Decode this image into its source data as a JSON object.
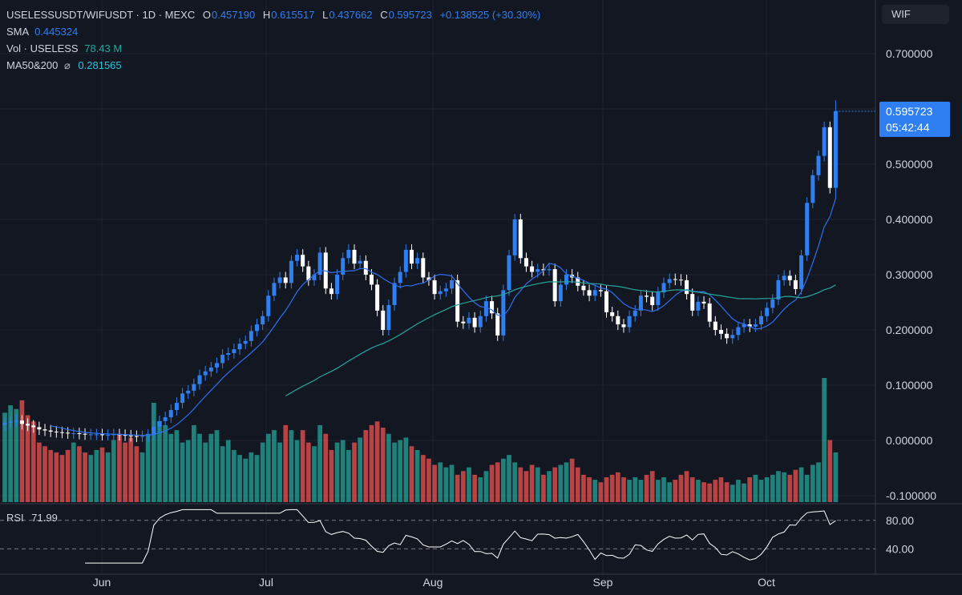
{
  "header": {
    "symbol": "USELESSUSDT/WIFUSDT · 1D · MEXC",
    "open_label": "O",
    "open": "0.457190",
    "high_label": "H",
    "high": "0.615517",
    "low_label": "L",
    "low": "0.437662",
    "close_label": "C",
    "close": "0.595723",
    "change": "+0.138525 (+30.30%)",
    "sma_label": "SMA",
    "sma_value": "0.445324",
    "vol_label": "Vol · USELESS",
    "vol_value": "78.43 M",
    "ma_label": "MA50&200",
    "ma_symbol": "⌀",
    "ma_value": "0.281565",
    "badge": "WIF"
  },
  "price_label": {
    "value": "0.595723",
    "countdown": "05:42:44"
  },
  "rsi": {
    "label": "RSI",
    "value": "71.99"
  },
  "colors": {
    "background": "#131722",
    "up": "#2f7ff0",
    "down": "#ffffff",
    "vol_up": "#26a69a",
    "vol_down": "#ef5350",
    "sma": "#2f6ff0",
    "ma": "#26a69a",
    "rsi": "#ffffff"
  },
  "chart_data": {
    "type": "candlestick",
    "y_ticks": [
      "0.700000",
      "0.500000",
      "0.400000",
      "0.300000",
      "0.200000",
      "0.100000",
      "0.000000",
      "-0.100000"
    ],
    "rsi_ticks": [
      "80.00",
      "40.00"
    ],
    "x_ticks": [
      "Jun",
      "Jul",
      "Aug",
      "Sep",
      "Oct"
    ],
    "ylim": [
      -0.11,
      0.77
    ],
    "close": [
      0.032,
      0.034,
      0.036,
      0.03,
      0.027,
      0.024,
      0.02,
      0.018,
      0.016,
      0.015,
      0.014,
      0.013,
      0.013,
      0.012,
      0.011,
      0.011,
      0.011,
      0.01,
      0.01,
      0.011,
      0.01,
      0.009,
      0.008,
      0.007,
      0.008,
      0.01,
      0.025,
      0.035,
      0.042,
      0.055,
      0.068,
      0.085,
      0.09,
      0.102,
      0.118,
      0.125,
      0.132,
      0.14,
      0.155,
      0.158,
      0.165,
      0.175,
      0.18,
      0.198,
      0.21,
      0.225,
      0.262,
      0.285,
      0.295,
      0.285,
      0.325,
      0.336,
      0.315,
      0.29,
      0.3,
      0.34,
      0.275,
      0.265,
      0.3,
      0.33,
      0.345,
      0.32,
      0.325,
      0.3,
      0.282,
      0.235,
      0.2,
      0.245,
      0.285,
      0.305,
      0.345,
      0.32,
      0.33,
      0.295,
      0.29,
      0.265,
      0.27,
      0.275,
      0.29,
      0.215,
      0.212,
      0.222,
      0.205,
      0.225,
      0.252,
      0.23,
      0.19,
      0.272,
      0.335,
      0.4,
      0.33,
      0.315,
      0.305,
      0.31,
      0.308,
      0.31,
      0.252,
      0.282,
      0.3,
      0.295,
      0.28,
      0.272,
      0.262,
      0.272,
      0.27,
      0.232,
      0.225,
      0.21,
      0.205,
      0.225,
      0.235,
      0.262,
      0.26,
      0.245,
      0.268,
      0.285,
      0.292,
      0.291,
      0.29,
      0.265,
      0.235,
      0.251,
      0.248,
      0.215,
      0.2,
      0.193,
      0.185,
      0.191,
      0.205,
      0.21,
      0.206,
      0.21,
      0.225,
      0.24,
      0.255,
      0.29,
      0.298,
      0.29,
      0.274,
      0.335,
      0.43,
      0.48,
      0.515,
      0.567,
      0.457,
      0.596
    ],
    "volume": [
      0.72,
      0.78,
      0.75,
      0.82,
      0.7,
      0.65,
      0.48,
      0.45,
      0.42,
      0.4,
      0.38,
      0.42,
      0.48,
      0.45,
      0.4,
      0.38,
      0.42,
      0.44,
      0.4,
      0.5,
      0.55,
      0.48,
      0.52,
      0.45,
      0.4,
      0.55,
      0.8,
      0.65,
      0.62,
      0.55,
      0.58,
      0.48,
      0.5,
      0.62,
      0.55,
      0.48,
      0.55,
      0.58,
      0.45,
      0.5,
      0.42,
      0.38,
      0.35,
      0.4,
      0.38,
      0.48,
      0.55,
      0.58,
      0.48,
      0.62,
      0.58,
      0.5,
      0.58,
      0.48,
      0.45,
      0.62,
      0.55,
      0.42,
      0.48,
      0.5,
      0.42,
      0.48,
      0.52,
      0.58,
      0.62,
      0.65,
      0.6,
      0.55,
      0.48,
      0.5,
      0.52,
      0.45,
      0.42,
      0.38,
      0.35,
      0.3,
      0.32,
      0.28,
      0.3,
      0.22,
      0.25,
      0.28,
      0.22,
      0.2,
      0.25,
      0.3,
      0.32,
      0.35,
      0.38,
      0.32,
      0.28,
      0.25,
      0.3,
      0.28,
      0.22,
      0.25,
      0.28,
      0.3,
      0.32,
      0.35,
      0.28,
      0.22,
      0.2,
      0.18,
      0.16,
      0.2,
      0.22,
      0.24,
      0.2,
      0.18,
      0.2,
      0.18,
      0.22,
      0.25,
      0.18,
      0.2,
      0.16,
      0.18,
      0.22,
      0.25,
      0.2,
      0.18,
      0.16,
      0.15,
      0.18,
      0.2,
      0.16,
      0.14,
      0.18,
      0.15,
      0.2,
      0.22,
      0.18,
      0.2,
      0.22,
      0.25,
      0.24,
      0.22,
      0.26,
      0.28,
      0.22,
      0.3,
      0.32,
      1.0,
      0.5,
      0.4
    ],
    "sma": {
      "name": "SMA",
      "start": 0,
      "values": []
    },
    "rsi_values": []
  }
}
